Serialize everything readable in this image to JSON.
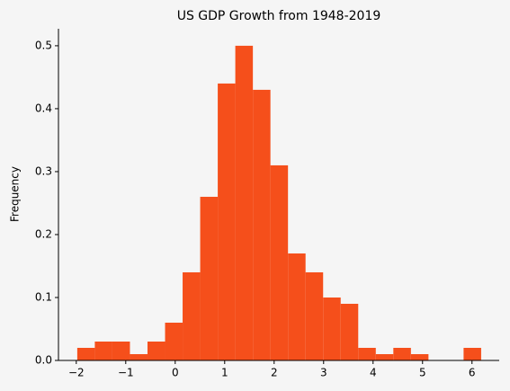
{
  "chart_data": {
    "type": "histogram",
    "title": "US GDP Growth from 1948-2019",
    "y_label": "Frequency",
    "bins": [
      -1.98,
      -1.625,
      -1.27,
      -0.915,
      -0.56,
      -0.205,
      0.15,
      0.505,
      0.86,
      1.215,
      1.57,
      1.925,
      2.28,
      2.635,
      2.99,
      3.345,
      3.7,
      4.055,
      4.41,
      4.765,
      5.12,
      5.475,
      5.83,
      6.185
    ],
    "values": [
      0.02,
      0.03,
      0.03,
      0.01,
      0.03,
      0.06,
      0.14,
      0.26,
      0.44,
      0.5,
      0.43,
      0.31,
      0.17,
      0.14,
      0.1,
      0.09,
      0.02,
      0.01,
      0.02,
      0.01,
      0,
      0,
      0.02
    ],
    "color": "#f54f1b",
    "xlim": [
      -2.36,
      6.55
    ],
    "ylim": [
      0,
      0.527
    ],
    "xticks": [
      {
        "value": -2,
        "label": "−2"
      },
      {
        "value": -1,
        "label": "−1"
      },
      0,
      1,
      2,
      3,
      4,
      5,
      6
    ],
    "yticks": [
      {
        "value": 0,
        "label": "0.0"
      },
      0.1,
      0.2,
      0.3,
      0.4,
      0.5
    ],
    "grid": false
  }
}
